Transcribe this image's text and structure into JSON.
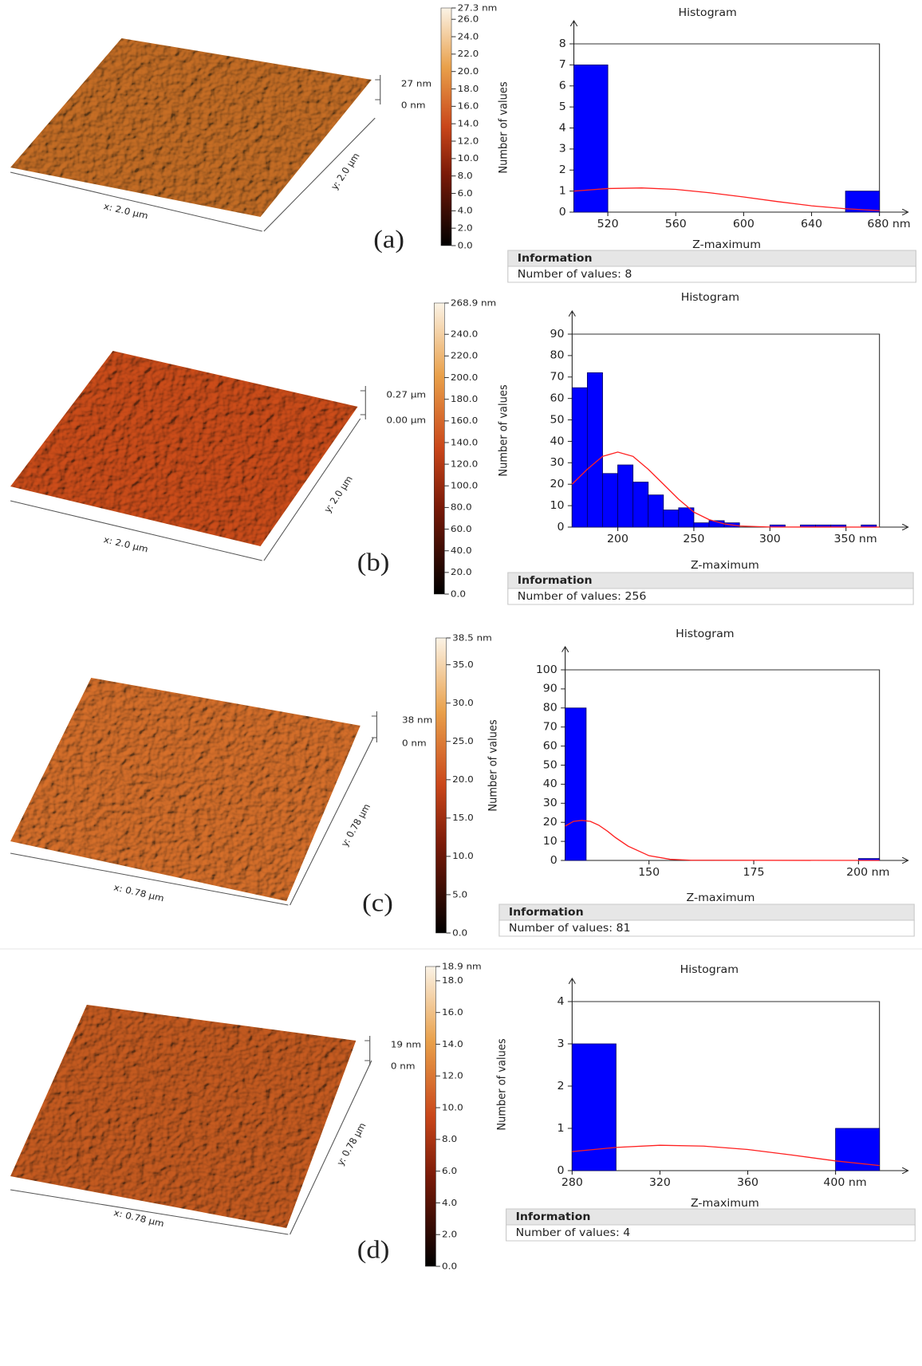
{
  "chart_data": [
    {
      "type": "histogram",
      "title": "Histogram",
      "x_label": "Z-maximum",
      "y_label": "Number of values",
      "color": "#0000ff",
      "bins": [
        500,
        520,
        540,
        560,
        580,
        600,
        620,
        640,
        660,
        680
      ],
      "values": [
        7,
        0,
        0,
        0,
        0,
        0,
        0,
        0,
        1
      ],
      "xlim": [
        500,
        680
      ],
      "xticks": [
        520,
        560,
        600,
        640,
        {
          "value": 680,
          "label": "680 nm"
        }
      ],
      "ylim": [
        0,
        8
      ],
      "yticks": [
        0,
        1,
        2,
        3,
        4,
        5,
        6,
        7,
        8
      ],
      "fit": {
        "color": "#ff2020",
        "x": [
          500,
          520,
          540,
          560,
          580,
          600,
          620,
          640,
          660,
          680
        ],
        "values": [
          1.0,
          1.12,
          1.15,
          1.08,
          0.92,
          0.72,
          0.5,
          0.3,
          0.16,
          0.07
        ]
      },
      "info_title": "Information",
      "info_text": "Number of values: 8"
    },
    {
      "type": "histogram",
      "title": "Histogram",
      "x_label": "Z-maximum",
      "y_label": "Number of values",
      "color": "#0000ff",
      "bins": [
        170,
        180,
        190,
        200,
        210,
        220,
        230,
        240,
        250,
        260,
        270,
        280,
        290,
        300,
        310,
        320,
        330,
        340,
        350,
        360,
        370
      ],
      "values": [
        65,
        72,
        25,
        29,
        21,
        15,
        8,
        9,
        2,
        3,
        2,
        0,
        0,
        1,
        0,
        1,
        1,
        1,
        0,
        1
      ],
      "xlim": [
        170,
        372
      ],
      "xticks": [
        200,
        250,
        300,
        {
          "value": 350,
          "label": "350 nm"
        }
      ],
      "ylim": [
        0,
        90
      ],
      "yticks": [
        0,
        10,
        20,
        30,
        40,
        50,
        60,
        70,
        80,
        90
      ],
      "fit": {
        "color": "#ff2020",
        "x": [
          170,
          180,
          190,
          200,
          210,
          220,
          230,
          240,
          250,
          260,
          270,
          280,
          300,
          372
        ],
        "values": [
          20,
          27,
          33,
          35,
          33,
          27,
          20,
          13,
          7,
          3.5,
          1.5,
          0.5,
          0.05,
          0
        ]
      },
      "info_title": "Information",
      "info_text": "Number of values: 256"
    },
    {
      "type": "histogram",
      "title": "Histogram",
      "x_label": "Z-maximum",
      "y_label": "Number of values",
      "color": "#0000ff",
      "bins": [
        130,
        135,
        140,
        145,
        150,
        155,
        160,
        165,
        170,
        175,
        180,
        185,
        190,
        195,
        200,
        205
      ],
      "values": [
        80,
        0,
        0,
        0,
        0,
        0,
        0,
        0,
        0,
        0,
        0,
        0,
        0,
        0,
        1
      ],
      "xlim": [
        130,
        205
      ],
      "xticks": [
        150,
        175,
        {
          "value": 200,
          "label": "200 nm"
        }
      ],
      "ylim": [
        0,
        100
      ],
      "yticks": [
        0,
        10,
        20,
        30,
        40,
        50,
        60,
        70,
        80,
        90,
        100
      ],
      "fit": {
        "color": "#ff2020",
        "x": [
          130,
          132,
          134,
          136,
          138,
          140,
          142,
          145,
          150,
          155,
          160,
          205
        ],
        "values": [
          18,
          20.5,
          21,
          20.5,
          18.5,
          15.5,
          12,
          7.5,
          2.5,
          0.6,
          0.1,
          0
        ]
      },
      "info_title": "Information",
      "info_text": "Number of values: 81"
    },
    {
      "type": "histogram",
      "title": "Histogram",
      "x_label": "Z-maximum",
      "y_label": "Number of values",
      "color": "#0000ff",
      "bins": [
        280,
        300,
        320,
        340,
        360,
        380,
        400,
        420
      ],
      "values": [
        3,
        0,
        0,
        0,
        0,
        0,
        1
      ],
      "xlim": [
        280,
        420
      ],
      "xticks": [
        280,
        320,
        360,
        {
          "value": 400,
          "label": "400 nm"
        }
      ],
      "ylim": [
        0,
        4
      ],
      "yticks": [
        0,
        1,
        2,
        3,
        4
      ],
      "fit": {
        "color": "#ff2020",
        "x": [
          280,
          300,
          320,
          340,
          360,
          380,
          400,
          420
        ],
        "values": [
          0.45,
          0.55,
          0.6,
          0.58,
          0.5,
          0.37,
          0.23,
          0.12
        ]
      },
      "info_title": "Information",
      "info_text": "Number of values: 4"
    }
  ],
  "surfaces": [
    {
      "label": "(a)",
      "x_axis": "x: 2.0 µm",
      "y_axis": "y: 2.0 µm",
      "z_top": "27 nm",
      "z_bottom": "0 nm",
      "colorbar": {
        "lim": [
          0,
          27.3
        ],
        "ticks": [
          {
            "value": 27.3,
            "label": "27.3 nm"
          },
          {
            "value": 26,
            "label": "26.0"
          },
          {
            "value": 24,
            "label": "24.0"
          },
          {
            "value": 22,
            "label": "22.0"
          },
          {
            "value": 20,
            "label": "20.0"
          },
          {
            "value": 18,
            "label": "18.0"
          },
          {
            "value": 16,
            "label": "16.0"
          },
          {
            "value": 14,
            "label": "14.0"
          },
          {
            "value": 12,
            "label": "12.0"
          },
          {
            "value": 10,
            "label": "10.0"
          },
          {
            "value": 8,
            "label": "8.0"
          },
          {
            "value": 6,
            "label": "6.0"
          },
          {
            "value": 4,
            "label": "4.0"
          },
          {
            "value": 2,
            "label": "2.0"
          },
          {
            "value": 0,
            "label": "0.0"
          }
        ]
      }
    },
    {
      "label": "(b)",
      "x_axis": "x: 2.0 µm",
      "y_axis": "y: 2.0 µm",
      "z_top": "0.27 µm",
      "z_bottom": "0.00 µm",
      "colorbar": {
        "lim": [
          0,
          268.9
        ],
        "ticks": [
          {
            "value": 268.9,
            "label": "268.9 nm"
          },
          {
            "value": 240,
            "label": "240.0"
          },
          {
            "value": 220,
            "label": "220.0"
          },
          {
            "value": 200,
            "label": "200.0"
          },
          {
            "value": 180,
            "label": "180.0"
          },
          {
            "value": 160,
            "label": "160.0"
          },
          {
            "value": 140,
            "label": "140.0"
          },
          {
            "value": 120,
            "label": "120.0"
          },
          {
            "value": 100,
            "label": "100.0"
          },
          {
            "value": 80,
            "label": "80.0"
          },
          {
            "value": 60,
            "label": "60.0"
          },
          {
            "value": 40,
            "label": "40.0"
          },
          {
            "value": 20,
            "label": "20.0"
          },
          {
            "value": 0,
            "label": "0.0"
          }
        ]
      }
    },
    {
      "label": "(c)",
      "x_axis": "x: 0.78 µm",
      "y_axis": "y: 0.78 µm",
      "z_top": "38 nm",
      "z_bottom": "0 nm",
      "colorbar": {
        "lim": [
          0,
          38.5
        ],
        "ticks": [
          {
            "value": 38.5,
            "label": "38.5 nm"
          },
          {
            "value": 35,
            "label": "35.0"
          },
          {
            "value": 30,
            "label": "30.0"
          },
          {
            "value": 25,
            "label": "25.0"
          },
          {
            "value": 20,
            "label": "20.0"
          },
          {
            "value": 15,
            "label": "15.0"
          },
          {
            "value": 10,
            "label": "10.0"
          },
          {
            "value": 5,
            "label": "5.0"
          },
          {
            "value": 0,
            "label": "0.0"
          }
        ]
      }
    },
    {
      "label": "(d)",
      "x_axis": "x: 0.78 µm",
      "y_axis": "y: 0.78 µm",
      "z_top": "19 nm",
      "z_bottom": "0 nm",
      "colorbar": {
        "lim": [
          0,
          18.9
        ],
        "ticks": [
          {
            "value": 18.9,
            "label": "18.9 nm"
          },
          {
            "value": 18,
            "label": "18.0"
          },
          {
            "value": 16,
            "label": "16.0"
          },
          {
            "value": 14,
            "label": "14.0"
          },
          {
            "value": 12,
            "label": "12.0"
          },
          {
            "value": 10,
            "label": "10.0"
          },
          {
            "value": 8,
            "label": "8.0"
          },
          {
            "value": 6,
            "label": "6.0"
          },
          {
            "value": 4,
            "label": "4.0"
          },
          {
            "value": 2,
            "label": "2.0"
          },
          {
            "value": 0,
            "label": "0.0"
          }
        ]
      }
    }
  ]
}
